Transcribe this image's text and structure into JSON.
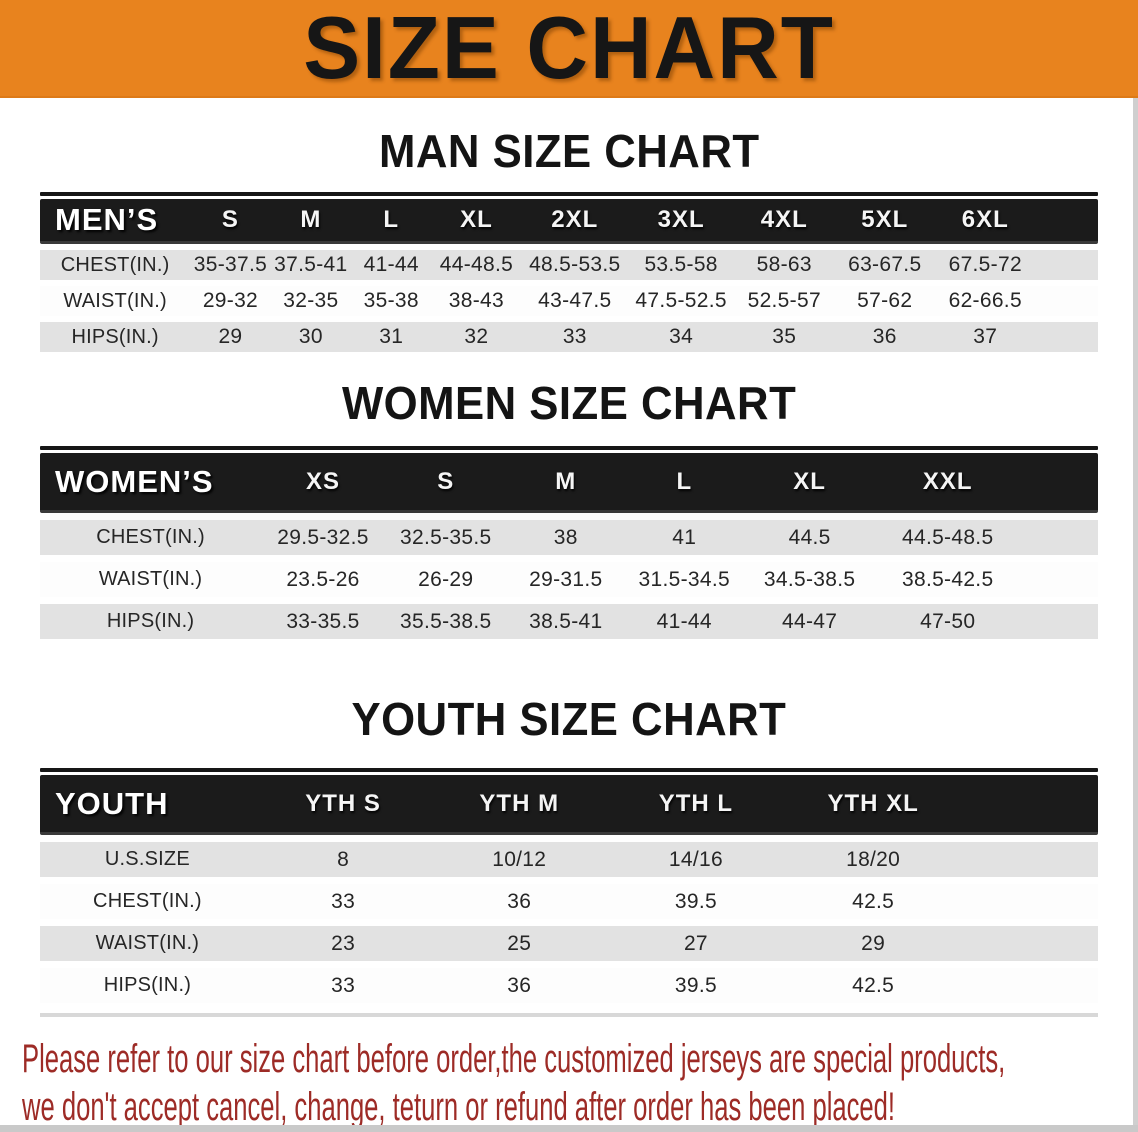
{
  "banner": {
    "title": "SIZE CHART"
  },
  "colors": {
    "banner_orange": "#E8831E",
    "header_bar_black": "#1B1B1B",
    "row_gray": "#E2E2E2",
    "disclaimer_red": "#9D2B26"
  },
  "sections": [
    {
      "title": "MAN SIZE CHART",
      "header_label": "MEN’S",
      "columns": [
        "S",
        "M",
        "L",
        "XL",
        "2XL",
        "3XL",
        "4XL",
        "5XL",
        "6XL"
      ],
      "rows": [
        {
          "label": "CHEST(IN.)",
          "values": [
            "35-37.5",
            "37.5-41",
            "41-44",
            "44-48.5",
            "48.5-53.5",
            "53.5-58",
            "58-63",
            "63-67.5",
            "67.5-72"
          ]
        },
        {
          "label": "WAIST(IN.)",
          "values": [
            "29-32",
            "32-35",
            "35-38",
            "38-43",
            "43-47.5",
            "47.5-52.5",
            "52.5-57",
            "57-62",
            "62-66.5"
          ]
        },
        {
          "label": "HIPS(IN.)",
          "values": [
            "29",
            "30",
            "31",
            "32",
            "33",
            "34",
            "35",
            "36",
            "37"
          ]
        }
      ]
    },
    {
      "title": "WOMEN SIZE CHART",
      "header_label": "WOMEN’S",
      "columns": [
        "XS",
        "S",
        "M",
        "L",
        "XL",
        "XXL"
      ],
      "rows": [
        {
          "label": "CHEST(IN.)",
          "values": [
            "29.5-32.5",
            "32.5-35.5",
            "38",
            "41",
            "44.5",
            "44.5-48.5"
          ]
        },
        {
          "label": "WAIST(IN.)",
          "values": [
            "23.5-26",
            "26-29",
            "29-31.5",
            "31.5-34.5",
            "34.5-38.5",
            "38.5-42.5"
          ]
        },
        {
          "label": "HIPS(IN.)",
          "values": [
            "33-35.5",
            "35.5-38.5",
            "38.5-41",
            "41-44",
            "44-47",
            "47-50"
          ]
        }
      ]
    },
    {
      "title": "YOUTH SIZE CHART",
      "header_label": "YOUTH",
      "columns": [
        "YTH S",
        "YTH M",
        "YTH L",
        "YTH XL"
      ],
      "rows": [
        {
          "label": "U.S.SIZE",
          "values": [
            "8",
            "10/12",
            "14/16",
            "18/20"
          ]
        },
        {
          "label": "CHEST(IN.)",
          "values": [
            "33",
            "36",
            "39.5",
            "42.5"
          ]
        },
        {
          "label": "WAIST(IN.)",
          "values": [
            "23",
            "25",
            "27",
            "29"
          ]
        },
        {
          "label": "HIPS(IN.)",
          "values": [
            "33",
            "36",
            "39.5",
            "42.5"
          ]
        }
      ]
    }
  ],
  "disclaimer": {
    "line1": "Please refer to our size chart before order,the customized jerseys are special products,",
    "line2": "we don't accept cancel, change, teturn or refund after order has been placed!"
  }
}
